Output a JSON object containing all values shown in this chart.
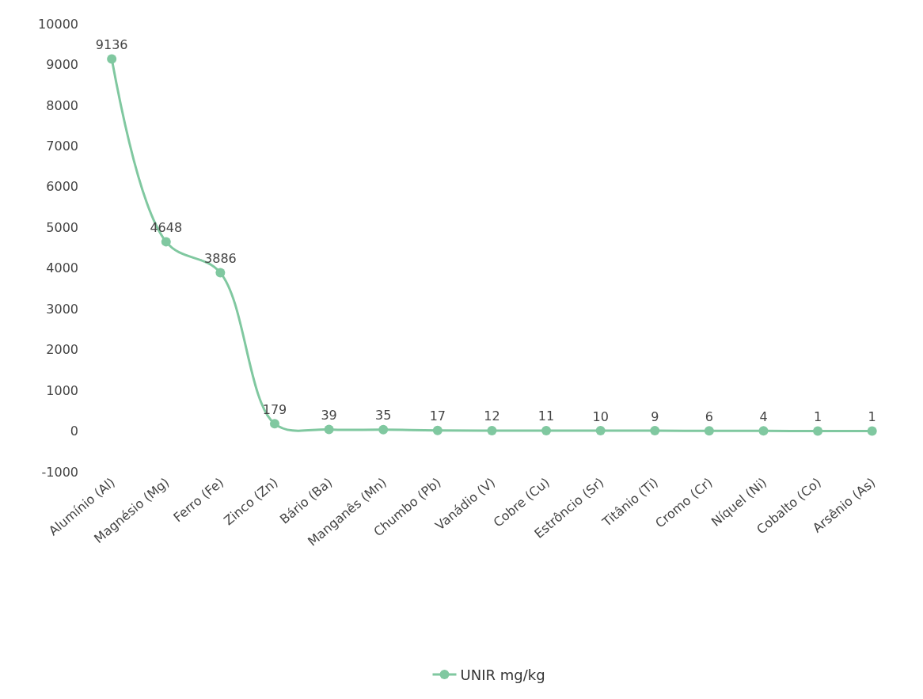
{
  "chart_data": {
    "type": "line",
    "categories": [
      "Alumínio (Al)",
      "Magnésio (Mg)",
      "Ferro (Fe)",
      "Zinco (Zn)",
      "Bário (Ba)",
      "Manganês (Mn)",
      "Chumbo (Pb)",
      "Vanádio (V)",
      "Cobre (Cu)",
      "Estrôncio (Sr)",
      "Titânio (Ti)",
      "Cromo (Cr)",
      "Níquel (Ni)",
      "Cobalto (Co)",
      "Arsênio (As)"
    ],
    "series": [
      {
        "name": "UNIR mg/kg",
        "color": "#80c8a0",
        "values": [
          9136,
          4648,
          3886,
          179,
          39,
          35,
          17,
          12,
          11,
          10,
          9,
          6,
          4,
          1,
          1
        ]
      }
    ],
    "ylim": [
      -1000,
      10000
    ],
    "yticks": [
      -1000,
      0,
      1000,
      2000,
      3000,
      4000,
      5000,
      6000,
      7000,
      8000,
      9000,
      10000
    ],
    "grid": false,
    "legend": "bottom",
    "marker": "circle",
    "line_style": "solid",
    "data_labels": true
  }
}
